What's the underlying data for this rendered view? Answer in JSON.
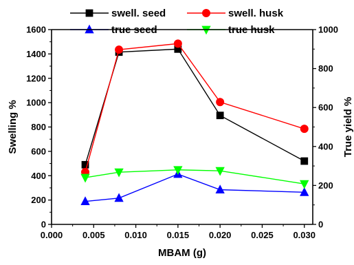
{
  "chart_data": {
    "type": "line",
    "x": [
      0.004,
      0.008,
      0.015,
      0.02,
      0.03
    ],
    "xlabel": "MBAM (g)",
    "xlim": [
      0.0,
      0.031
    ],
    "xticks": [
      "0.000",
      "0.005",
      "0.010",
      "0.015",
      "0.020",
      "0.025",
      "0.030"
    ],
    "ylabel": "Swelling %",
    "ylim": [
      0,
      1600
    ],
    "yticks": [
      "0",
      "200",
      "400",
      "600",
      "800",
      "1000",
      "1200",
      "1400",
      "1600"
    ],
    "y2label": "True yield %",
    "y2lim": [
      0,
      1000
    ],
    "y2ticks": [
      "0",
      "200",
      "400",
      "600",
      "800",
      "1000"
    ],
    "grid": false,
    "legend_position": "top",
    "series": [
      {
        "name": "swell. seed",
        "axis": "left",
        "color": "#000000",
        "marker": "square",
        "values": [
          490,
          1415,
          1440,
          895,
          520
        ]
      },
      {
        "name": "swell. husk",
        "axis": "left",
        "color": "#ff0000",
        "marker": "circle",
        "values": [
          430,
          1435,
          1485,
          1005,
          785
        ]
      },
      {
        "name": "true seed",
        "axis": "right",
        "color": "#0000ff",
        "marker": "triangle-up",
        "values": [
          118,
          135,
          258,
          178,
          165
        ]
      },
      {
        "name": "true husk",
        "axis": "right",
        "color": "#00ff00",
        "marker": "triangle-down",
        "values": [
          240,
          268,
          280,
          275,
          208
        ]
      }
    ]
  }
}
